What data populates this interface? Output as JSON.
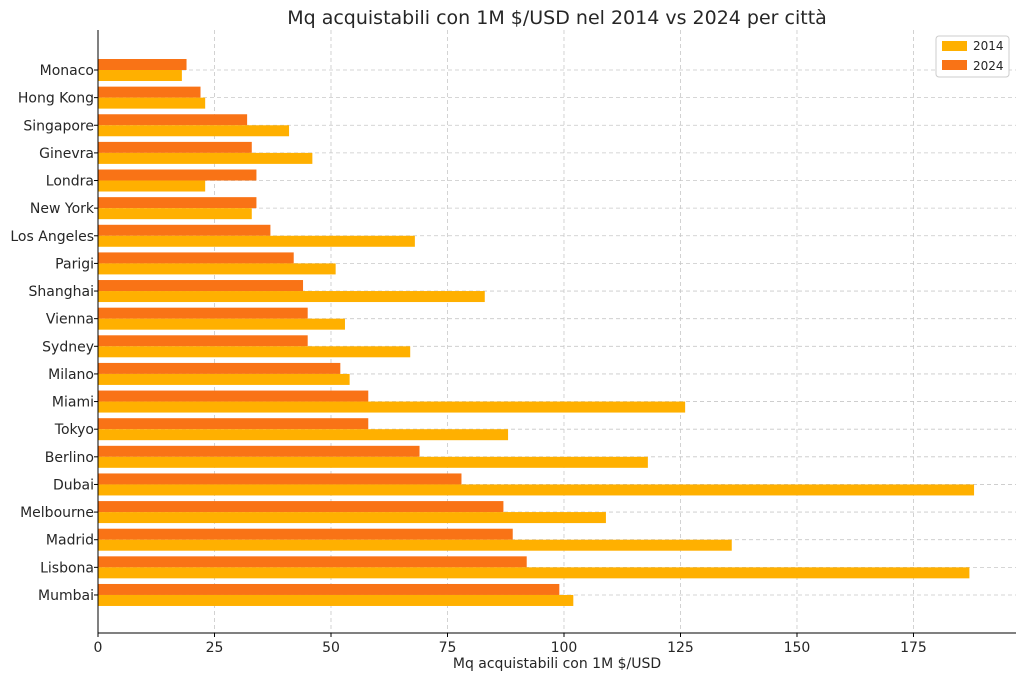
{
  "chart_data": {
    "type": "bar",
    "orientation": "horizontal",
    "title": "Mq acquistabili con 1M $/USD nel 2014 vs 2024 per città",
    "xlabel": "Mq acquistabili con 1M $/USD",
    "ylabel": "",
    "xlim": [
      0,
      197
    ],
    "xticks": [
      0,
      25,
      50,
      75,
      100,
      125,
      150,
      175
    ],
    "grid": true,
    "legend_position": "top-right",
    "categories": [
      "Monaco",
      "Hong Kong",
      "Singapore",
      "Ginevra",
      "Londra",
      "New York",
      "Los Angeles",
      "Parigi",
      "Shanghai",
      "Vienna",
      "Sydney",
      "Milano",
      "Miami",
      "Tokyo",
      "Berlino",
      "Dubai",
      "Melbourne",
      "Madrid",
      "Lisbona",
      "Mumbai"
    ],
    "series": [
      {
        "name": "2014",
        "color": "#ffb000",
        "values": [
          18,
          23,
          41,
          46,
          23,
          33,
          68,
          51,
          83,
          53,
          67,
          54,
          126,
          88,
          118,
          188,
          109,
          136,
          187,
          102
        ]
      },
      {
        "name": "2024",
        "color": "#f97316",
        "values": [
          19,
          22,
          32,
          33,
          34,
          34,
          37,
          42,
          44,
          45,
          45,
          52,
          58,
          58,
          69,
          78,
          87,
          89,
          92,
          99
        ]
      }
    ]
  }
}
